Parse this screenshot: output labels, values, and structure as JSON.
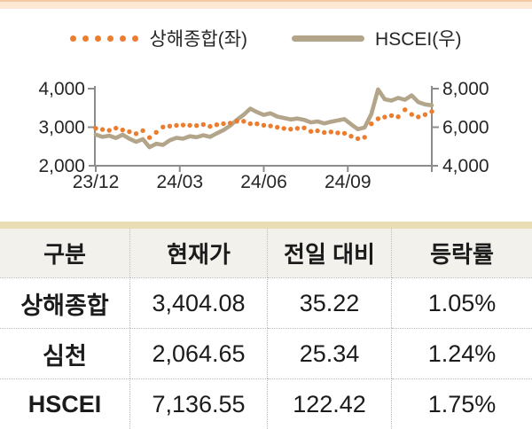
{
  "page": {
    "background": "#ffffff",
    "top_band_color": "#fbe9d6",
    "top_band_edge_color": "#f4c9a2"
  },
  "legend": [
    {
      "label": "상해종합(좌)",
      "marker": "dots",
      "color": "#ed7d2e"
    },
    {
      "label": "HSCEI(우)",
      "marker": "line",
      "color": "#b3a58a"
    }
  ],
  "chart_data": {
    "type": "line",
    "title": "",
    "xlabel": "",
    "ylabel_left": "",
    "ylabel_right": "",
    "grid": false,
    "legend_position": "top",
    "axis_color": "#8c8c8c",
    "tick_label_color": "#262626",
    "x_tick_labels": [
      "23/12",
      "24/03",
      "24/06",
      "24/09"
    ],
    "left_axis": {
      "tick_labels": [
        "4,000",
        "3,000",
        "2,000"
      ],
      "min": 2000,
      "max": 4000
    },
    "right_axis": {
      "tick_labels": [
        "8,000",
        "6,000",
        "4,000"
      ],
      "min": 4000,
      "max": 8000
    },
    "series": [
      {
        "name": "상해종합(좌)",
        "axis": "left",
        "style": "dotted",
        "color": "#ed7d2e",
        "values": [
          2970,
          2940,
          2918,
          2975,
          2929,
          2882,
          2832,
          2910,
          2730,
          2866,
          3005,
          3027,
          3046,
          3055,
          3048,
          3041,
          3069,
          3020,
          3065,
          3089,
          3105,
          3155,
          3154,
          3089,
          3087,
          3051,
          3033,
          2998,
          2967,
          2950,
          2971,
          2982,
          2891,
          2905,
          2862,
          2879,
          2854,
          2842,
          2766,
          2704,
          2737,
          3088,
          3218,
          3262,
          3300,
          3272,
          3452,
          3331,
          3267,
          3326,
          3404
        ]
      },
      {
        "name": "HSCEI(우)",
        "axis": "right",
        "style": "solid",
        "color": "#b3a58a",
        "values": [
          5620,
          5500,
          5560,
          5440,
          5610,
          5400,
          5240,
          5380,
          4960,
          5140,
          5080,
          5320,
          5450,
          5400,
          5530,
          5480,
          5580,
          5500,
          5680,
          5850,
          6080,
          6380,
          6650,
          6960,
          6780,
          6640,
          6720,
          6550,
          6480,
          6400,
          6450,
          6380,
          6250,
          6300,
          6200,
          6280,
          6350,
          6420,
          6150,
          5900,
          5980,
          6680,
          7960,
          7450,
          7380,
          7520,
          7420,
          7650,
          7300,
          7180,
          7136
        ]
      }
    ]
  },
  "table": {
    "headers": [
      "구분",
      "현재가",
      "전일 대비",
      "등락률"
    ],
    "rows": [
      {
        "name": "상해종합",
        "price": "3,404.08",
        "change": "35.22",
        "rate": "1.05%"
      },
      {
        "name": "심천",
        "price": "2,064.65",
        "change": "25.34",
        "rate": "1.24%"
      },
      {
        "name": "HSCEI",
        "price": "7,136.55",
        "change": "122.42",
        "rate": "1.75%"
      }
    ]
  }
}
